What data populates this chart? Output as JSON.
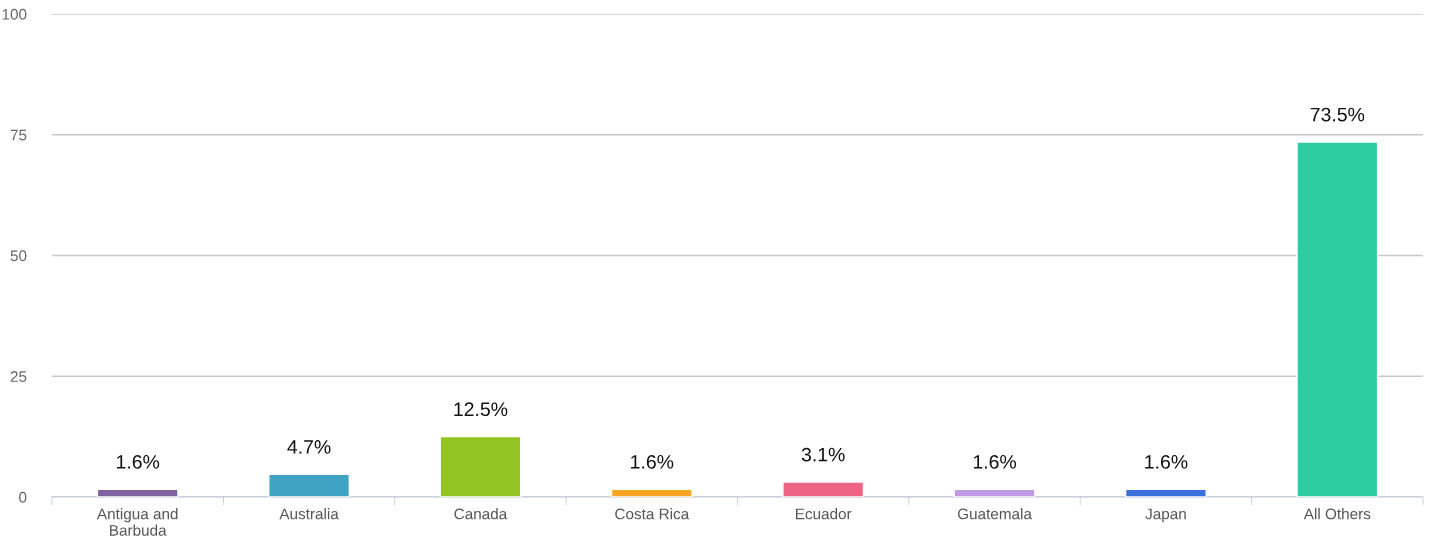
{
  "chart_data": {
    "type": "bar",
    "categories": [
      "Antigua and\nBarbuda",
      "Australia",
      "Canada",
      "Costa Rica",
      "Ecuador",
      "Guatemala",
      "Japan",
      "All Others"
    ],
    "values": [
      1.6,
      4.7,
      12.5,
      1.6,
      3.1,
      1.6,
      1.6,
      73.5
    ],
    "value_labels": [
      "1.6%",
      "4.7%",
      "12.5%",
      "1.6%",
      "3.1%",
      "1.6%",
      "1.6%",
      "73.5%"
    ],
    "colors": [
      "#7f62a0",
      "#3fa3c4",
      "#93c525",
      "#f7a623",
      "#ee6485",
      "#c29be6",
      "#3b6fdc",
      "#2ecd9f"
    ],
    "ylim": [
      0,
      100
    ],
    "yticks": [
      0,
      25,
      50,
      75,
      100
    ],
    "grid": "y",
    "legend": false
  }
}
